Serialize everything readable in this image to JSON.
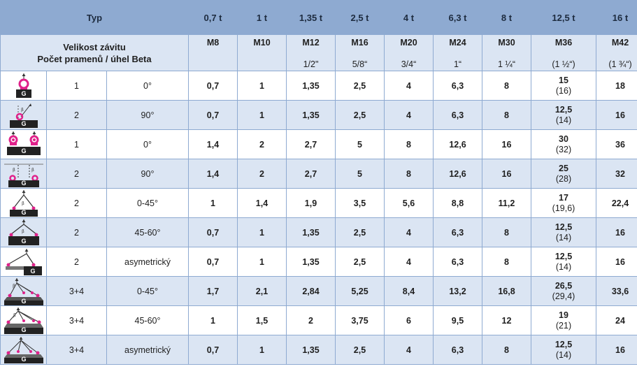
{
  "header": {
    "type_label": "Typ",
    "description_line1": "Velikost závitu",
    "description_line2": "Počet pramenů / úhel Beta",
    "capacities": [
      "0,7 t",
      "1 t",
      "1,35 t",
      "2,5 t",
      "4 t",
      "6,3 t",
      "8 t",
      "12,5 t",
      "16 t"
    ],
    "threads": [
      "M8",
      "M10",
      "M12",
      "M16",
      "M20",
      "M24",
      "M30",
      "M36",
      "M42"
    ],
    "inches": [
      "",
      "",
      "1/2\"",
      "5/8“",
      "3/4“",
      "1“",
      "1 ¼“",
      "(1 ½“)",
      "(1 ¾“)"
    ]
  },
  "rows": [
    {
      "icon": "single-eyebolt-vertical-icon",
      "legs": "1",
      "angle": "0°",
      "values": [
        "0,7",
        "1",
        "1,35",
        "2,5",
        "4",
        "6,3",
        "8",
        "15",
        "18"
      ],
      "alt": "(16)"
    },
    {
      "icon": "single-eyebolt-angled-icon",
      "legs": "2",
      "angle": "90°",
      "values": [
        "0,7",
        "1",
        "1,35",
        "2,5",
        "4",
        "6,3",
        "8",
        "12,5",
        "16"
      ],
      "alt": "(14)"
    },
    {
      "icon": "double-eyebolt-vertical-icon",
      "legs": "1",
      "angle": "0°",
      "values": [
        "1,4",
        "2",
        "2,7",
        "5",
        "8",
        "12,6",
        "16",
        "30",
        "36"
      ],
      "alt": "(32)"
    },
    {
      "icon": "double-eyebolt-angled-icon",
      "legs": "2",
      "angle": "90°",
      "values": [
        "1,4",
        "2",
        "2,7",
        "5",
        "8",
        "12,6",
        "16",
        "25",
        "32"
      ],
      "alt": "(28)"
    },
    {
      "icon": "two-leg-sling-narrow-icon",
      "legs": "2",
      "angle": "0-45°",
      "values": [
        "1",
        "1,4",
        "1,9",
        "3,5",
        "5,6",
        "8,8",
        "11,2",
        "17",
        "22,4"
      ],
      "alt": "(19,6)"
    },
    {
      "icon": "two-leg-sling-wide-icon",
      "legs": "2",
      "angle": "45-60°",
      "values": [
        "0,7",
        "1",
        "1,35",
        "2,5",
        "4",
        "6,3",
        "8",
        "12,5",
        "16"
      ],
      "alt": "(14)"
    },
    {
      "icon": "two-leg-sling-asymmetric-icon",
      "legs": "2",
      "angle": "asymetrický",
      "values": [
        "0,7",
        "1",
        "1,35",
        "2,5",
        "4",
        "6,3",
        "8",
        "12,5",
        "16"
      ],
      "alt": "(14)"
    },
    {
      "icon": "four-leg-sling-narrow-icon",
      "legs": "3+4",
      "angle": "0-45°",
      "values": [
        "1,7",
        "2,1",
        "2,84",
        "5,25",
        "8,4",
        "13,2",
        "16,8",
        "26,5",
        "33,6"
      ],
      "alt": "(29,4)"
    },
    {
      "icon": "four-leg-sling-wide-icon",
      "legs": "3+4",
      "angle": "45-60°",
      "values": [
        "1",
        "1,5",
        "2",
        "3,75",
        "6",
        "9,5",
        "12",
        "19",
        "24"
      ],
      "alt": "(21)"
    },
    {
      "icon": "four-leg-sling-asymmetric-icon",
      "legs": "3+4",
      "angle": "asymetrický",
      "values": [
        "0,7",
        "1",
        "1,35",
        "2,5",
        "4",
        "6,3",
        "8",
        "12,5",
        "16"
      ],
      "alt": "(14)"
    }
  ],
  "icon_text": "G",
  "beta_symbol": "β",
  "colors": {
    "header_blue": "#8eaad1",
    "row_blue": "#dbe5f3",
    "eyebolt_pink": "#e0218a",
    "load_dark": "#222222"
  }
}
